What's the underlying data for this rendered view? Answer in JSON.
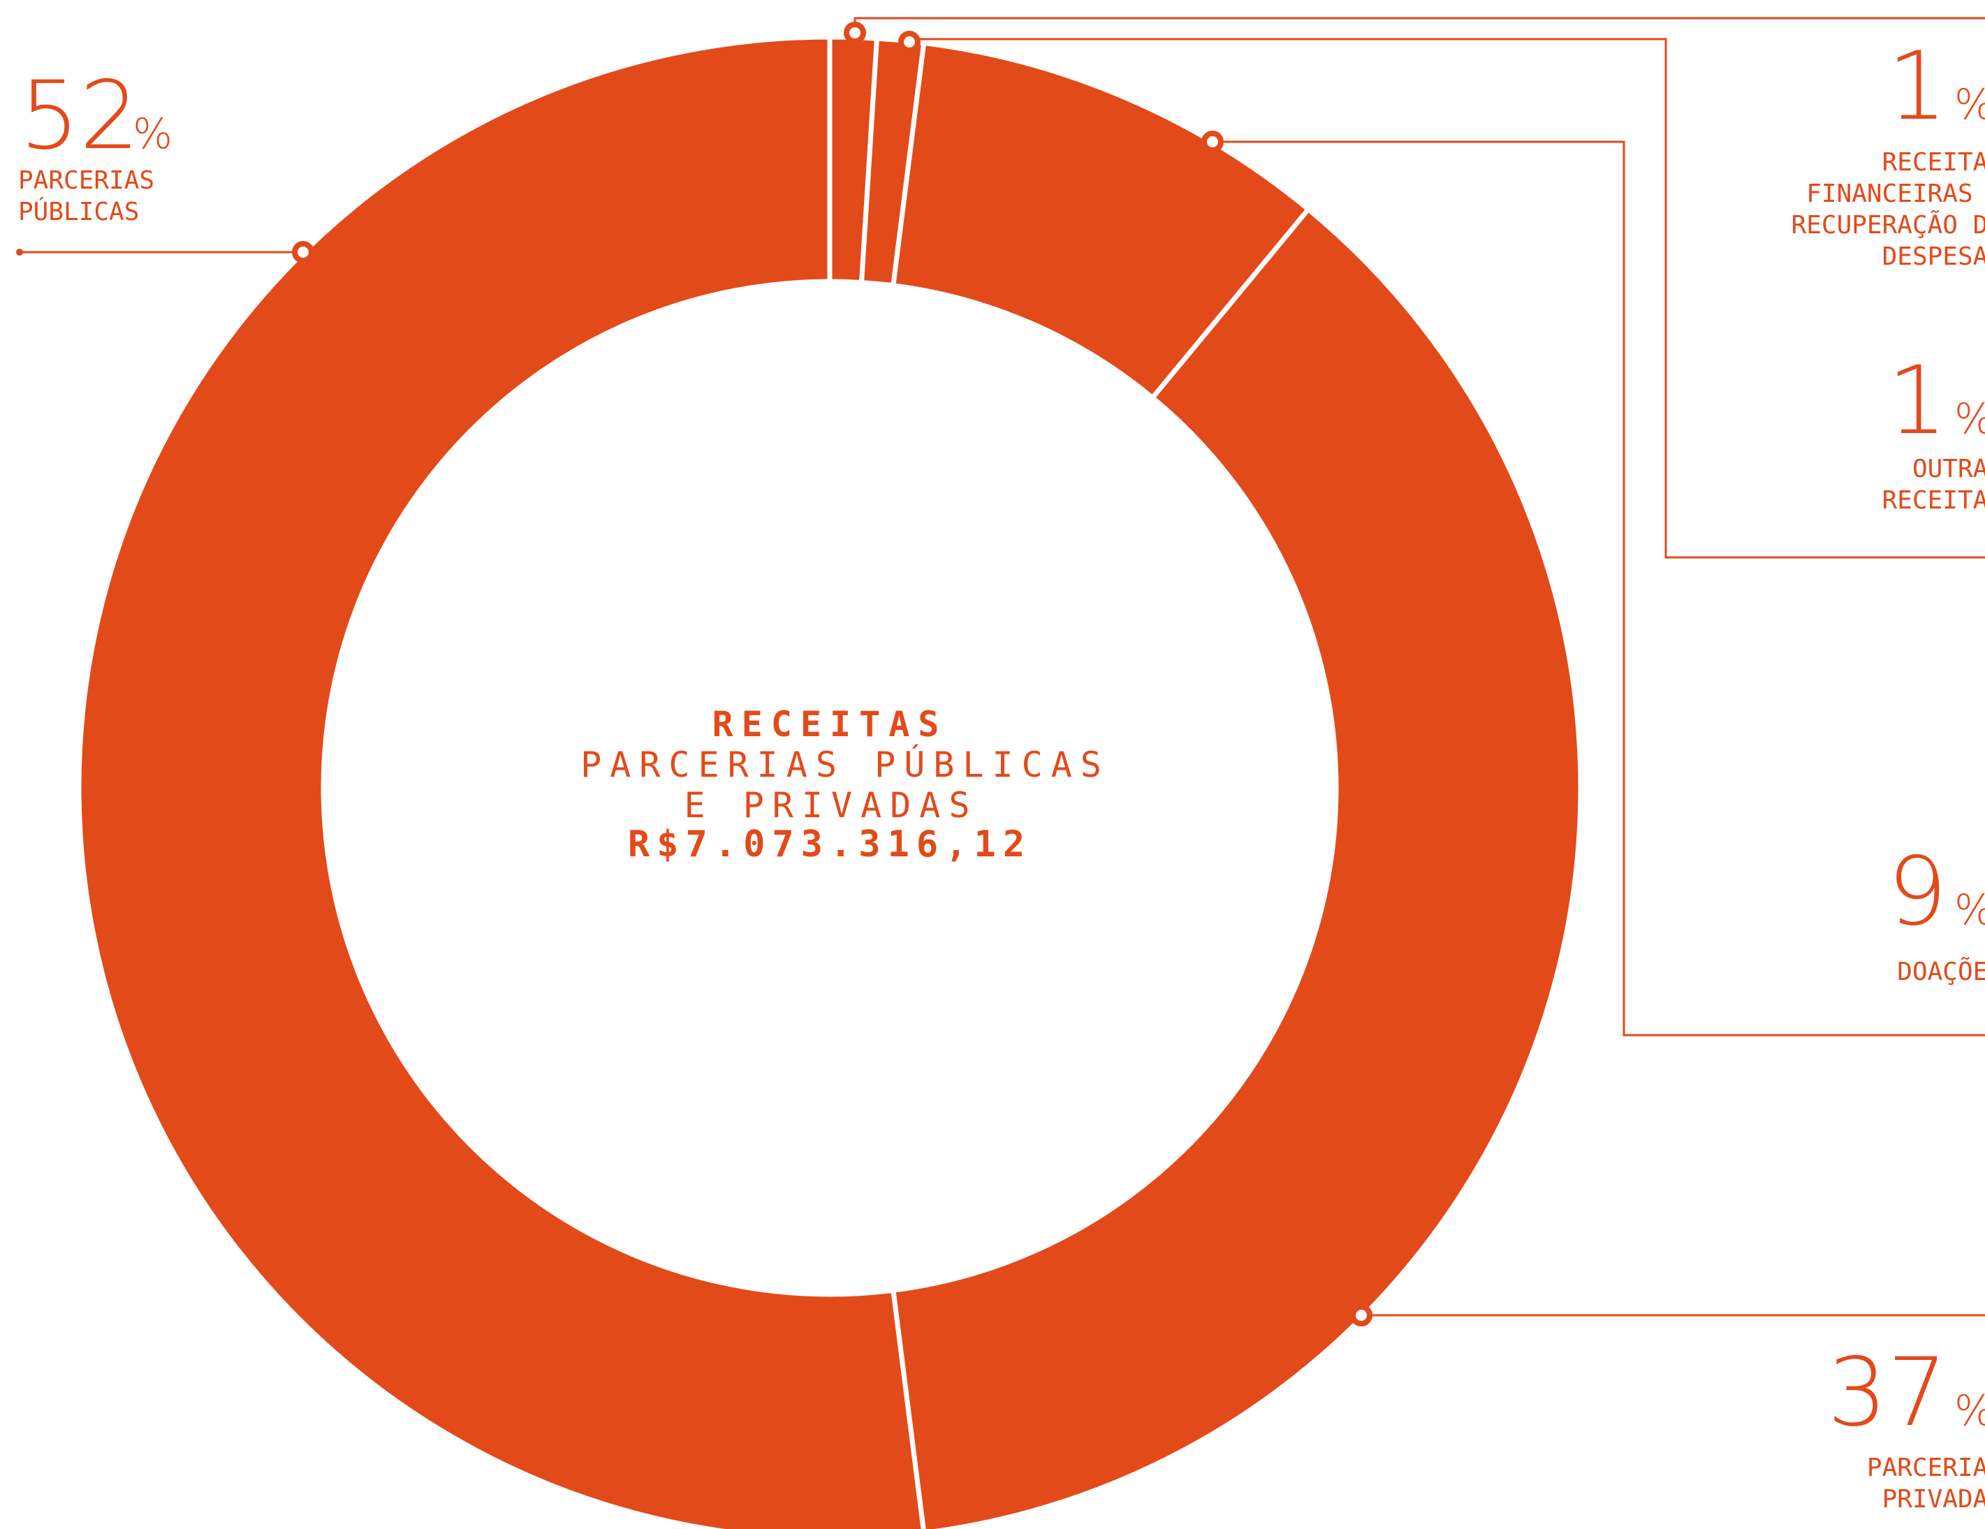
{
  "chart_data": {
    "type": "pie",
    "accent_color": "#e34a1a",
    "center": {
      "title": "RECEITAS",
      "subtitle_line1": "PARCERIAS PÚBLICAS",
      "subtitle_line2": "E PRIVADAS",
      "total": "R$7.073.316,12"
    },
    "slices": [
      {
        "key": "receitas_financeiras",
        "value": 1,
        "pct_label": "1",
        "pct_symbol": "%",
        "label_lines": [
          "RECEITAS",
          "FINANCEIRAS -",
          "RECUPERAÇÃO DE",
          "DESPESAS"
        ]
      },
      {
        "key": "outras_receitas",
        "value": 1,
        "pct_label": "1",
        "pct_symbol": "%",
        "label_lines": [
          "OUTRAS",
          "RECEITAS"
        ]
      },
      {
        "key": "doacoes",
        "value": 9,
        "pct_label": "9",
        "pct_symbol": "%",
        "label_lines": [
          "DOAÇÕES"
        ]
      },
      {
        "key": "parcerias_privadas",
        "value": 37,
        "pct_label": "37",
        "pct_symbol": "%",
        "label_lines": [
          "PARCERIAS",
          "PRIVADAS"
        ]
      },
      {
        "key": "parcerias_publicas",
        "value": 52,
        "pct_label": "52",
        "pct_symbol": "%",
        "label_lines": [
          "PARCERIAS",
          "PÚBLICAS"
        ]
      }
    ]
  }
}
